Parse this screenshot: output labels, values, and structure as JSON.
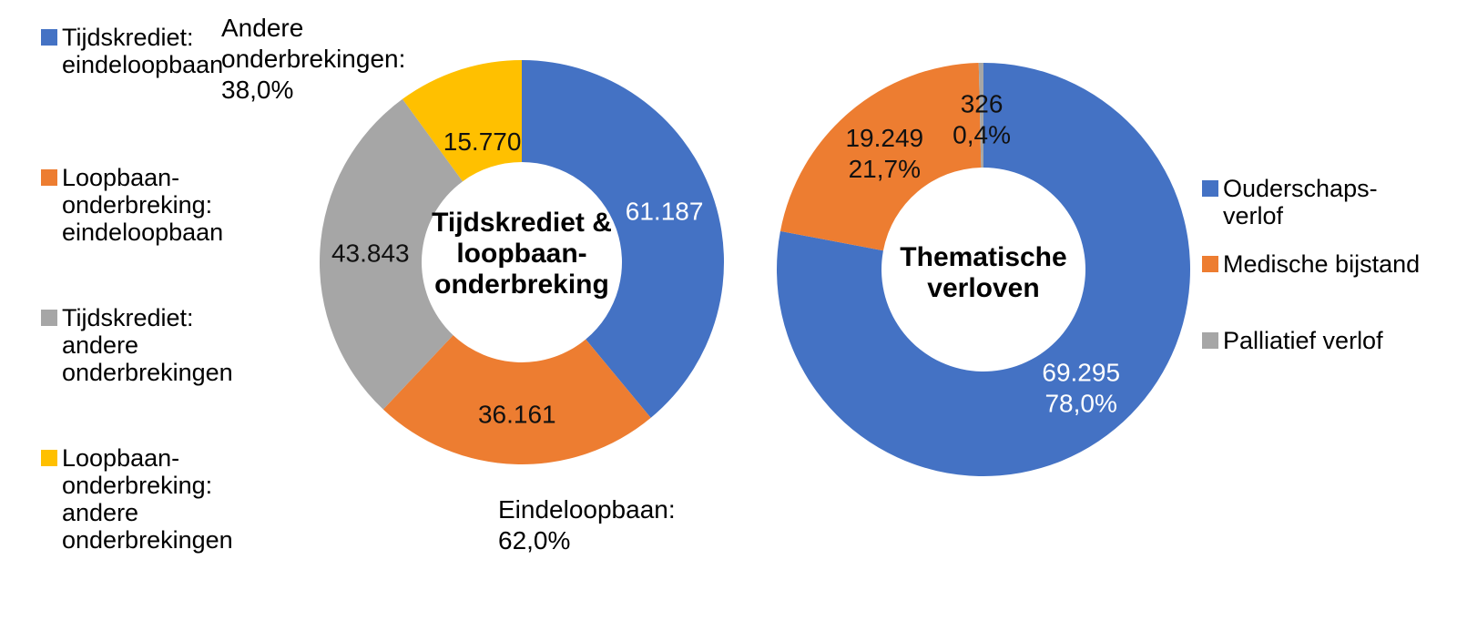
{
  "page": {
    "background": "#FFFFFF"
  },
  "colors": {
    "blue": "#4472C4",
    "orange": "#ED7D31",
    "gray": "#A6A6A6",
    "yellow": "#FFC000"
  },
  "chart_data": [
    {
      "type": "pie",
      "donut": true,
      "title": "Tijdskrediet & loopbaan-onderbreking",
      "title_lines": [
        "Tijdskrediet &",
        "loopbaan-",
        "onderbreking"
      ],
      "legend_position": "left",
      "start_angle_deg": 0,
      "direction": "clockwise",
      "slices": [
        {
          "name": "Tijdskrediet: eindeloopbaan",
          "value": 61187,
          "label_lines": [
            "61.187"
          ],
          "color": "#4472C4",
          "label_color": "#FFFFFF",
          "label_r_frac": 0.75
        },
        {
          "name": "Loopbaan-onderbreking: eindeloopbaan",
          "value": 36161,
          "label_lines": [
            "36.161"
          ],
          "color": "#ED7D31",
          "label_color": "#111111",
          "label_r_frac": 0.75
        },
        {
          "name": "Tijdskrediet: andere onderbrekingen",
          "value": 43843,
          "label_lines": [
            "43.843"
          ],
          "color": "#A6A6A6",
          "label_color": "#111111",
          "label_r_frac": 0.75
        },
        {
          "name": "Loopbaan-onderbreking: andere onderbrekingen",
          "value": 15770,
          "label_lines": [
            "15.770"
          ],
          "color": "#FFC000",
          "label_color": "#111111",
          "label_r_frac": 0.63
        }
      ],
      "annotations": [
        {
          "text": "Andere onderbrekingen: 38,0%",
          "lines": [
            "Andere",
            "onderbrekingen:",
            "38,0%"
          ]
        },
        {
          "text": "Eindeloopbaan: 62,0%",
          "lines": [
            "Eindeloopbaan:",
            "62,0%"
          ]
        }
      ]
    },
    {
      "type": "pie",
      "donut": true,
      "title": "Thematische verloven",
      "title_lines": [
        "Thematische",
        "verloven"
      ],
      "legend_position": "right",
      "start_angle_deg": 0,
      "direction": "clockwise",
      "slices": [
        {
          "name": "Ouderschapsverlof",
          "value": 69295,
          "label_lines": [
            "69.295",
            "78,0%"
          ],
          "color": "#4472C4",
          "label_color": "#FFFFFF",
          "label_r_frac": 0.74
        },
        {
          "name": "Medische bijstand",
          "value": 19249,
          "label_lines": [
            "19.249",
            "21,7%"
          ],
          "color": "#ED7D31",
          "label_color": "#111111",
          "label_r_frac": 0.74
        },
        {
          "name": "Palliatief verlof",
          "value": 326,
          "label_lines": [
            "326",
            "0,4%"
          ],
          "color": "#A6A6A6",
          "label_color": "#111111",
          "label_r_frac": 0.73
        }
      ],
      "annotations": []
    }
  ],
  "legends": {
    "left": {
      "items": [
        {
          "color": "#4472C4",
          "lines": [
            "Tijdskrediet:",
            "eindeloopbaan"
          ]
        },
        {
          "color": "#ED7D31",
          "lines": [
            "Loopbaan-",
            "onderbreking:",
            "eindeloopbaan"
          ]
        },
        {
          "color": "#A6A6A6",
          "lines": [
            "Tijdskrediet:",
            "andere",
            "onderbrekingen"
          ]
        },
        {
          "color": "#FFC000",
          "lines": [
            "Loopbaan-",
            "onderbreking:",
            "andere",
            "onderbrekingen"
          ]
        }
      ]
    },
    "right": {
      "items": [
        {
          "color": "#4472C4",
          "lines": [
            "Ouderschaps-",
            "verlof"
          ]
        },
        {
          "color": "#ED7D31",
          "lines": [
            "Medische bijstand"
          ]
        },
        {
          "color": "#A6A6A6",
          "lines": [
            "Palliatief verlof"
          ]
        }
      ]
    }
  }
}
